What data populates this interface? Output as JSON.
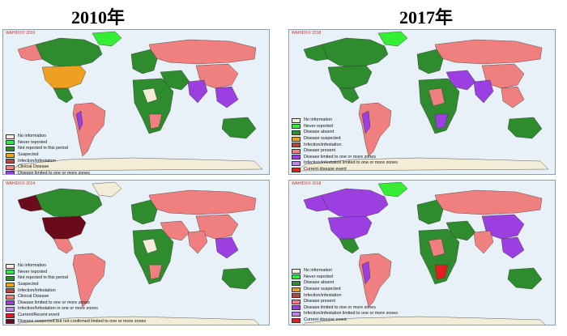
{
  "titles": {
    "left": "2010年",
    "right": "2017年"
  },
  "panels": [
    {
      "watermark": "WAHID©© 2016",
      "legend": [
        {
          "label": "No information",
          "color": "#f3ecd6"
        },
        {
          "label": "Never reported",
          "color": "#33ee33"
        },
        {
          "label": "Not reported in this period",
          "color": "#2e8b2e"
        },
        {
          "label": "Suspected",
          "color": "#f0a020"
        },
        {
          "label": "Infection/Infestation",
          "color": "#b04a3a"
        },
        {
          "label": "Clinical Disease",
          "color": "#f08080"
        },
        {
          "label": "Disease limited to one or more zones",
          "color": "#9b3fe0"
        }
      ]
    },
    {
      "watermark": "WAHID©© 2018",
      "legend": [
        {
          "label": "No information",
          "color": "#f3ecd6"
        },
        {
          "label": "Never reported",
          "color": "#33ee33"
        },
        {
          "label": "Disease absent",
          "color": "#2e8b2e"
        },
        {
          "label": "Disease suspected",
          "color": "#f0a020"
        },
        {
          "label": "Infection/infestation",
          "color": "#b04a3a"
        },
        {
          "label": "Disease present",
          "color": "#f08080"
        },
        {
          "label": "Disease limited to one or more zones",
          "color": "#9b3fe0"
        },
        {
          "label": "Infection/infestation limited to one or more zones",
          "color": "#c084e8"
        },
        {
          "label": "Current disease event",
          "color": "#e02020"
        }
      ]
    },
    {
      "watermark": "WAHID©© 2014",
      "legend": [
        {
          "label": "No information",
          "color": "#f3ecd6"
        },
        {
          "label": "Never reported",
          "color": "#33ee33"
        },
        {
          "label": "Not reported in this period",
          "color": "#2e8b2e"
        },
        {
          "label": "Suspected",
          "color": "#f0a020"
        },
        {
          "label": "Infection/Infestation",
          "color": "#b04a3a"
        },
        {
          "label": "Clinical Disease",
          "color": "#f08080"
        },
        {
          "label": "Disease limited to one or more zones",
          "color": "#9b3fe0"
        },
        {
          "label": "Infection/Infestation in one or more zones",
          "color": "#c084e8"
        },
        {
          "label": "Current/Recent event",
          "color": "#e02020"
        },
        {
          "label": "Disease suspected but not confirmed limited to one or more zones",
          "color": "#6a0a1a"
        }
      ]
    },
    {
      "watermark": "WAHID©© 2018",
      "legend": [
        {
          "label": "No information",
          "color": "#f3ecd6"
        },
        {
          "label": "Never reported",
          "color": "#33ee33"
        },
        {
          "label": "Disease absent",
          "color": "#2e8b2e"
        },
        {
          "label": "Disease suspected",
          "color": "#f0a020"
        },
        {
          "label": "Infection/infestation",
          "color": "#b04a3a"
        },
        {
          "label": "Disease present",
          "color": "#f08080"
        },
        {
          "label": "Disease limited to one or more zones",
          "color": "#9b3fe0"
        },
        {
          "label": "Infection/infestation limited to one or more zones",
          "color": "#c084e8"
        },
        {
          "label": "Current disease event",
          "color": "#e02020"
        }
      ]
    }
  ],
  "colors": {
    "ocean": "#e8f1f8",
    "antarctica": "#f3ecd6",
    "clinical": "#f08080",
    "absent": "#2e8b2e",
    "never": "#33ee33",
    "noinfo": "#f3ecd6",
    "suspected": "#f0a020",
    "infection": "#b04a3a",
    "zones": "#9b3fe0",
    "dark": "#6a0a1a"
  }
}
